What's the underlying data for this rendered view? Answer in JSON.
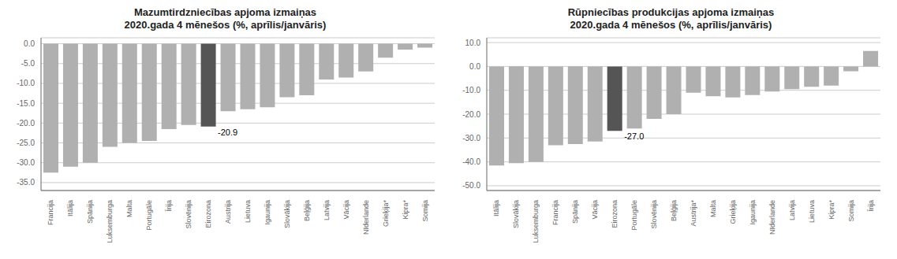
{
  "chart_data": [
    {
      "type": "bar",
      "title": "Mazumtirdzniecības apjoma izmaiņas\n2020.gada 4 mēnešos (%, aprīlis/janvāris)",
      "categories": [
        "Francija",
        "Itālija",
        "Spānija",
        "Luksemburga",
        "Malta",
        "Portugāle",
        "Īrija",
        "Slovēnija",
        "Eirozona",
        "Austrija",
        "Lietuva",
        "Igaunija",
        "Slovākija",
        "Beļģija",
        "Latvija",
        "Vācija",
        "Nīderlande",
        "Grieķija*",
        "Kipra*",
        "Somija"
      ],
      "values": [
        -32.5,
        -31.0,
        -30.0,
        -26.0,
        -25.0,
        -24.5,
        -21.5,
        -20.5,
        -20.9,
        -17.0,
        -16.5,
        -16.0,
        -13.5,
        -13.0,
        -9.0,
        -8.5,
        -7.0,
        -3.5,
        -1.5,
        -1.0
      ],
      "colors": [
        "#b0b0b0",
        "#b0b0b0",
        "#b0b0b0",
        "#b0b0b0",
        "#b0b0b0",
        "#b0b0b0",
        "#b0b0b0",
        "#b0b0b0",
        "#555555",
        "#b0b0b0",
        "#b0b0b0",
        "#b0b0b0",
        "#b0b0b0",
        "#b0b0b0",
        "#b0b0b0",
        "#b0b0b0",
        "#b0b0b0",
        "#b0b0b0",
        "#b0b0b0",
        "#b0b0b0"
      ],
      "ylim": [
        -37,
        1.5
      ],
      "yticks": [
        {
          "value": 0.0,
          "label": "0.0"
        },
        {
          "value": -5.0,
          "label": "-5.0"
        },
        {
          "value": -10.0,
          "label": "-10.0"
        },
        {
          "value": -15.0,
          "label": "-15.0"
        },
        {
          "value": -20.0,
          "label": "-20.0"
        },
        {
          "value": -25.0,
          "label": "-25.0"
        },
        {
          "value": -30.0,
          "label": "-30.0"
        },
        {
          "value": -35.0,
          "label": "-35.0"
        }
      ],
      "grid": true,
      "annotations": [
        {
          "text": "-20.9",
          "x": "Eirozona",
          "y": -20.9
        }
      ]
    },
    {
      "type": "bar",
      "title": "Rūpniecības produkcijas apjoma izmaiņas\n2020.gada 4 mēnešos (%, aprīlis/janvāris)",
      "categories": [
        "Itālija",
        "Slovākija",
        "Luksemburga",
        "Francija",
        "Spānija",
        "Vācija",
        "Eirozona",
        "Portugāle",
        "Slovēnija",
        "Beļģija",
        "Austrija*",
        "Malta",
        "Grieķija",
        "Igaunija",
        "Nīderlande",
        "Latvija",
        "Lietuva",
        "Kipra*",
        "Somija",
        "Īrija"
      ],
      "values": [
        -41.5,
        -40.5,
        -40.0,
        -33.0,
        -32.5,
        -31.5,
        -27.0,
        -26.0,
        -22.0,
        -20.0,
        -11.0,
        -12.5,
        -13.0,
        -12.0,
        -10.5,
        -9.5,
        -8.5,
        -8.0,
        -2.0,
        6.5
      ],
      "colors": [
        "#b0b0b0",
        "#b0b0b0",
        "#b0b0b0",
        "#b0b0b0",
        "#b0b0b0",
        "#b0b0b0",
        "#555555",
        "#b0b0b0",
        "#b0b0b0",
        "#b0b0b0",
        "#b0b0b0",
        "#b0b0b0",
        "#b0b0b0",
        "#b0b0b0",
        "#b0b0b0",
        "#b0b0b0",
        "#b0b0b0",
        "#b0b0b0",
        "#b0b0b0",
        "#b0b0b0"
      ],
      "ylim": [
        -52,
        12
      ],
      "yticks": [
        {
          "value": 10.0,
          "label": "10.0"
        },
        {
          "value": 0.0,
          "label": "0.0"
        },
        {
          "value": -10.0,
          "label": "-10.0"
        },
        {
          "value": -20.0,
          "label": "-20.0"
        },
        {
          "value": -30.0,
          "label": "-30.0"
        },
        {
          "value": -40.0,
          "label": "-40.0"
        },
        {
          "value": -50.0,
          "label": "-50.0"
        }
      ],
      "grid": true,
      "annotations": [
        {
          "text": "-27.0",
          "x": "Eirozona",
          "y": -27.0
        }
      ]
    }
  ]
}
